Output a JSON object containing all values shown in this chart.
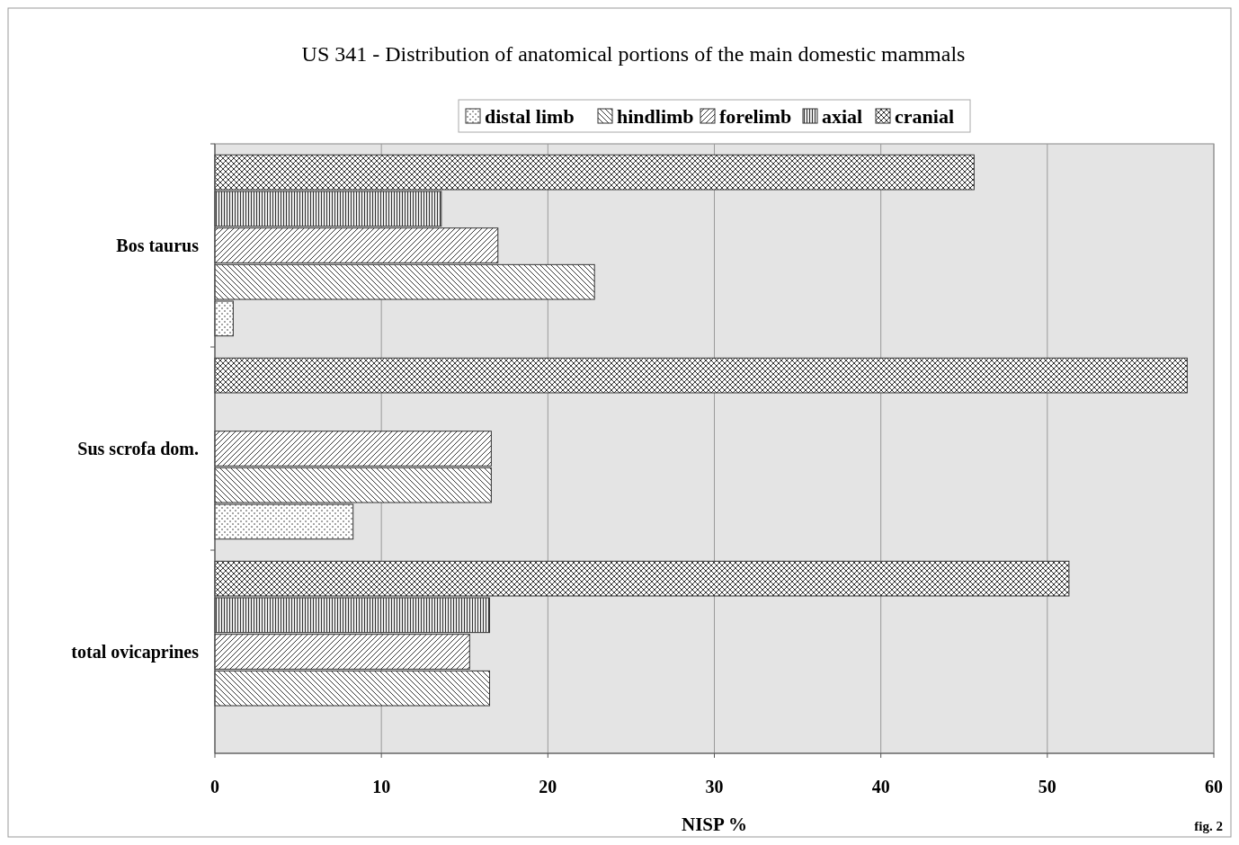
{
  "chart_data": {
    "type": "bar",
    "orientation": "horizontal",
    "title": "US 341 - Distribution of anatomical portions of the main domestic mammals",
    "xlabel": "NISP %",
    "categories": [
      "Bos taurus",
      "Sus scrofa dom.",
      "total ovicaprines"
    ],
    "series": [
      {
        "name": "distal limb",
        "color": "#333333",
        "values": [
          1.1,
          8.3,
          null
        ]
      },
      {
        "name": "hindlimb",
        "color": "#333333",
        "values": [
          22.8,
          16.6,
          16.5
        ]
      },
      {
        "name": "forelimb",
        "color": "#333333",
        "values": [
          17.0,
          16.6,
          15.3
        ]
      },
      {
        "name": "axial",
        "color": "#333333",
        "values": [
          13.6,
          null,
          16.5
        ]
      },
      {
        "name": "cranial",
        "color": "#333333",
        "values": [
          45.6,
          58.4,
          51.3
        ]
      }
    ],
    "xlim": [
      0,
      60
    ],
    "xticks": [
      0,
      10,
      20,
      30,
      40,
      50,
      60
    ],
    "grid": "x",
    "legend": "top",
    "annotations": [
      "fig. 2"
    ]
  }
}
